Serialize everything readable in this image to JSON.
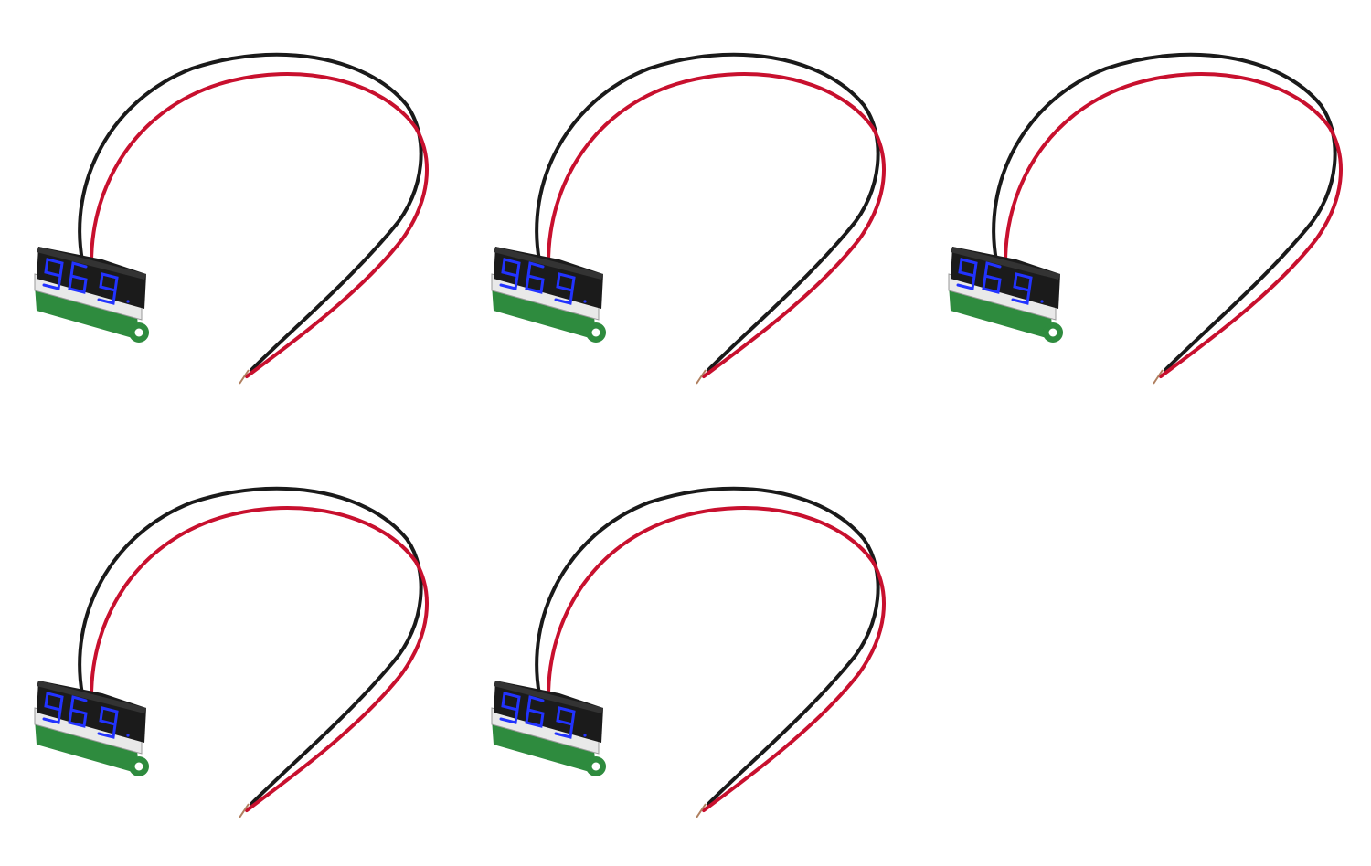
{
  "scene": {
    "background_color": "#ffffff",
    "subject": "voltmeter-module",
    "module_count": 5,
    "wire_colors": {
      "black": "#1a1a1a",
      "red": "#c8102e"
    },
    "display_digit_color": "#2233ff",
    "housing_color": "#1b1b1b",
    "board_color": "#2e8b3e",
    "modules": [
      {
        "digits": [
          "9",
          "6",
          "9"
        ]
      },
      {
        "digits": [
          "9",
          "6",
          "9"
        ]
      },
      {
        "digits": [
          "9",
          "6",
          "9"
        ]
      },
      {
        "digits": [
          "9",
          "6",
          "9"
        ]
      },
      {
        "digits": [
          "9",
          "6",
          "9"
        ]
      }
    ]
  }
}
